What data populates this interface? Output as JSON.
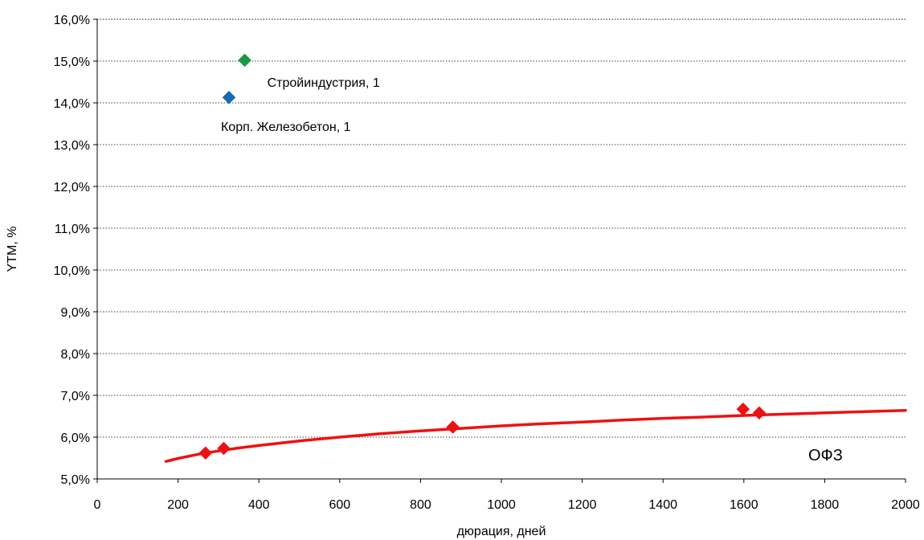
{
  "chart_data": {
    "type": "scatter",
    "xlabel": "дюрация, дней",
    "ylabel": "YTM, %",
    "xlim": [
      0,
      2000
    ],
    "ylim": [
      5.0,
      16.0
    ],
    "x_ticks": [
      0,
      200,
      400,
      600,
      800,
      1000,
      1200,
      1400,
      1600,
      1800,
      2000
    ],
    "x_tick_labels": [
      "0",
      "200",
      "400",
      "600",
      "800",
      "1000",
      "1200",
      "1400",
      "1600",
      "1800",
      "2000"
    ],
    "y_ticks": [
      5.0,
      6.0,
      7.0,
      8.0,
      9.0,
      10.0,
      11.0,
      12.0,
      13.0,
      14.0,
      15.0,
      16.0
    ],
    "y_tick_labels": [
      "5,0%",
      "6,0%",
      "7,0%",
      "8,0%",
      "9,0%",
      "10,0%",
      "11,0%",
      "12,0%",
      "13,0%",
      "14,0%",
      "15,0%",
      "16,0%"
    ],
    "grid": "horizontal-dotted",
    "series": [
      {
        "name": "ОФЗ",
        "color": "#ee1111",
        "marker": "diamond",
        "points": [
          {
            "x": 268,
            "y": 5.62
          },
          {
            "x": 313,
            "y": 5.73
          },
          {
            "x": 880,
            "y": 6.24
          },
          {
            "x": 1598,
            "y": 6.67
          },
          {
            "x": 1638,
            "y": 6.58
          }
        ],
        "trend_line": {
          "x": [
            170,
            200,
            250,
            300,
            350,
            400,
            500,
            600,
            700,
            800,
            900,
            1000,
            1100,
            1200,
            1300,
            1400,
            1500,
            1600,
            1700,
            1800,
            1900,
            2000
          ],
          "y": [
            5.42,
            5.49,
            5.59,
            5.67,
            5.74,
            5.8,
            5.91,
            6.0,
            6.08,
            6.15,
            6.21,
            6.27,
            6.32,
            6.36,
            6.41,
            6.45,
            6.48,
            6.52,
            6.55,
            6.58,
            6.61,
            6.64
          ]
        }
      },
      {
        "name": "Стройиндустрия, 1",
        "color": "#179945",
        "marker": "diamond",
        "points": [
          {
            "x": 365,
            "y": 15.02
          }
        ]
      },
      {
        "name": "Корп. Железобетон, 1",
        "color": "#1769b3",
        "marker": "diamond",
        "points": [
          {
            "x": 326,
            "y": 14.13
          }
        ]
      }
    ]
  }
}
